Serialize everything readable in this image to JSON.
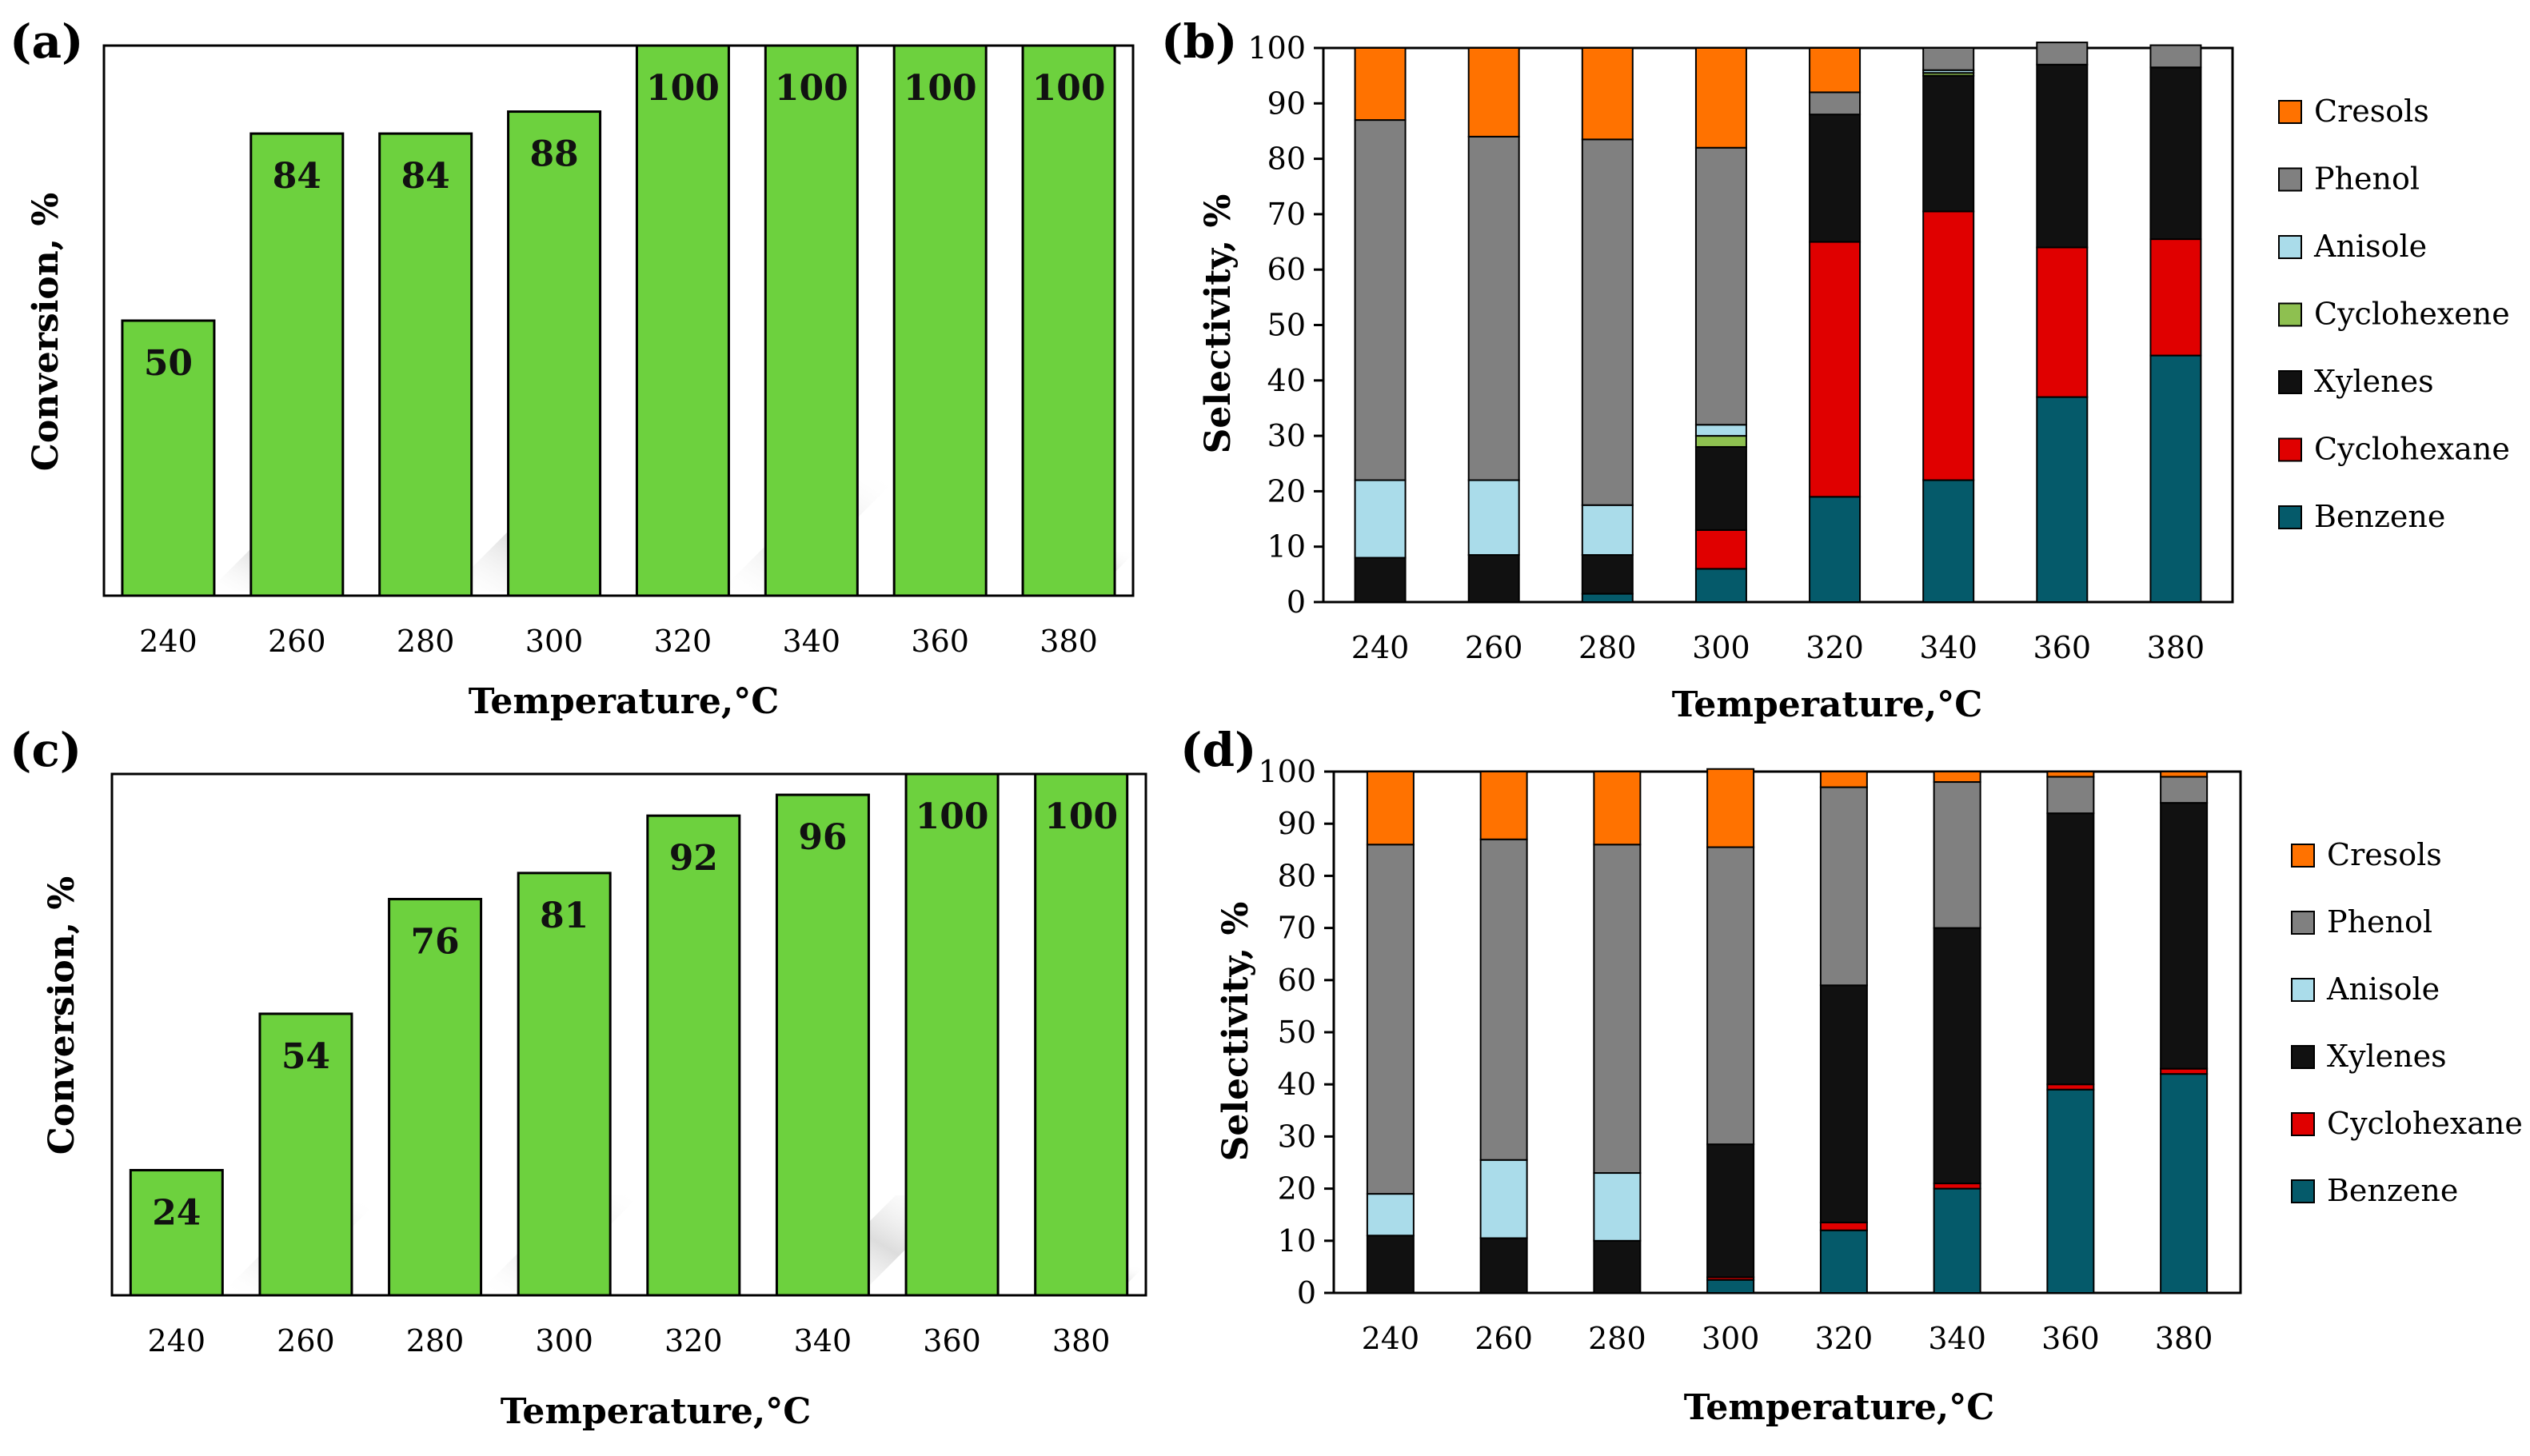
{
  "chart_data": [
    {
      "panel": "(a)",
      "type": "bar",
      "xlabel": "Temperature,°C",
      "ylabel": "Conversion, %",
      "categories": [
        "240",
        "260",
        "280",
        "300",
        "320",
        "340",
        "360",
        "380"
      ],
      "values": [
        50,
        84,
        84,
        88,
        100,
        100,
        100,
        100
      ],
      "data_labels": [
        "50",
        "84",
        "84",
        "88",
        "100",
        "100",
        "100",
        "100"
      ],
      "ylim": [
        0,
        100
      ],
      "color": "#6dd13e"
    },
    {
      "panel": "(b)",
      "type": "bar",
      "stacked": true,
      "xlabel": "Temperature,°C",
      "ylabel": "Selectivity, %",
      "categories": [
        "240",
        "260",
        "280",
        "300",
        "320",
        "340",
        "360",
        "380"
      ],
      "ylim": [
        0,
        100
      ],
      "yticks": [
        "0",
        "10",
        "20",
        "30",
        "40",
        "50",
        "60",
        "70",
        "80",
        "90",
        "100"
      ],
      "legend_position": "right",
      "series": [
        {
          "name": "Benzene",
          "color": "#055a6a",
          "values": [
            0,
            0,
            1.5,
            6,
            19,
            22,
            37,
            44.5
          ]
        },
        {
          "name": "Cyclohexane",
          "color": "#e00000",
          "values": [
            0,
            0,
            0,
            7,
            46,
            48.5,
            27,
            21
          ]
        },
        {
          "name": "Xylenes",
          "color": "#111111",
          "values": [
            8,
            8.5,
            7,
            15,
            23,
            24.5,
            33,
            31
          ]
        },
        {
          "name": "Cyclohexene",
          "color": "#8ec050",
          "values": [
            0,
            0,
            0,
            2,
            0,
            0.5,
            0,
            0
          ]
        },
        {
          "name": "Anisole",
          "color": "#aadcea",
          "values": [
            14,
            13.5,
            9,
            2,
            0,
            0.5,
            0,
            0
          ]
        },
        {
          "name": "Phenol",
          "color": "#808080",
          "values": [
            65,
            62,
            66,
            50,
            4,
            4,
            4,
            4
          ]
        },
        {
          "name": "Cresols",
          "color": "#ff7200",
          "values": [
            13,
            16,
            16.5,
            18,
            8,
            0,
            0,
            0
          ]
        }
      ],
      "legend_order": [
        "Cresols",
        "Phenol",
        "Anisole",
        "Cyclohexene",
        "Xylenes",
        "Cyclohexane",
        "Benzene"
      ]
    },
    {
      "panel": "(c)",
      "type": "bar",
      "xlabel": "Temperature,°C",
      "ylabel": "Conversion, %",
      "categories": [
        "240",
        "260",
        "280",
        "300",
        "320",
        "340",
        "360",
        "380"
      ],
      "values": [
        24,
        54,
        76,
        81,
        92,
        96,
        100,
        100
      ],
      "data_labels": [
        "24",
        "54",
        "76",
        "81",
        "92",
        "96",
        "100",
        "100"
      ],
      "ylim": [
        0,
        100
      ],
      "color": "#6dd13e"
    },
    {
      "panel": "(d)",
      "type": "bar",
      "stacked": true,
      "xlabel": "Temperature,°C",
      "ylabel": "Selectivity, %",
      "categories": [
        "240",
        "260",
        "280",
        "300",
        "320",
        "340",
        "360",
        "380"
      ],
      "ylim": [
        0,
        100
      ],
      "yticks": [
        "0",
        "10",
        "20",
        "30",
        "40",
        "50",
        "60",
        "70",
        "80",
        "90",
        "100"
      ],
      "legend_position": "right",
      "series": [
        {
          "name": "Benzene",
          "color": "#055a6a",
          "values": [
            0,
            0,
            0,
            2.5,
            12,
            20,
            39,
            42
          ]
        },
        {
          "name": "Cyclohexane",
          "color": "#e00000",
          "values": [
            0,
            0,
            0,
            0.5,
            1.5,
            1,
            1,
            1
          ]
        },
        {
          "name": "Xylenes",
          "color": "#111111",
          "values": [
            11,
            10.5,
            10,
            25.5,
            45.5,
            49,
            52,
            51
          ]
        },
        {
          "name": "Anisole",
          "color": "#aadcea",
          "values": [
            8,
            15,
            13,
            0,
            0,
            0,
            0,
            0
          ]
        },
        {
          "name": "Phenol",
          "color": "#808080",
          "values": [
            67,
            61.5,
            63,
            57,
            38,
            28,
            7,
            5
          ]
        },
        {
          "name": "Cresols",
          "color": "#ff7200",
          "values": [
            14,
            13,
            14,
            15,
            3,
            2,
            1,
            1
          ]
        }
      ],
      "legend_order": [
        "Cresols",
        "Phenol",
        "Anisole",
        "Xylenes",
        "Cyclohexane",
        "Benzene"
      ]
    }
  ]
}
